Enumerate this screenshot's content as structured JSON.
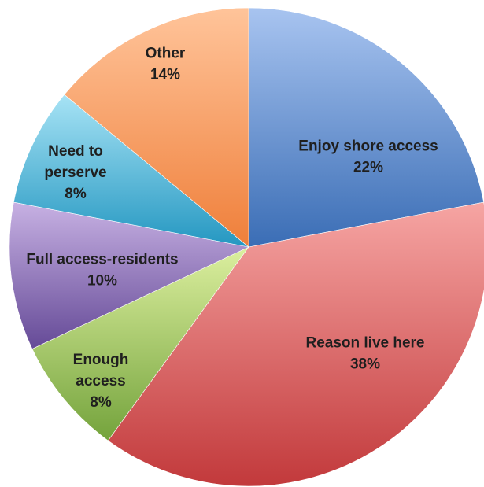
{
  "chart_data": {
    "type": "pie",
    "title": "",
    "slices": [
      {
        "label_lines": [
          "Enjoy shore access"
        ],
        "value": 22,
        "value_label": "22%",
        "color_light": "#a8c4f0",
        "color_dark": "#3a6db5"
      },
      {
        "label_lines": [
          "Reason live here"
        ],
        "value": 38,
        "value_label": "38%",
        "color_light": "#f6a5a3",
        "color_dark": "#c2393b"
      },
      {
        "label_lines": [
          "Enough",
          "access"
        ],
        "value": 8,
        "value_label": "8%",
        "color_light": "#dcef9f",
        "color_dark": "#74a33c"
      },
      {
        "label_lines": [
          "Full access-residents"
        ],
        "value": 10,
        "value_label": "10%",
        "color_light": "#c7b1e3",
        "color_dark": "#654a97"
      },
      {
        "label_lines": [
          "Need to",
          "perserve"
        ],
        "value": 8,
        "value_label": "8%",
        "color_light": "#a7e3f5",
        "color_dark": "#2497c1"
      },
      {
        "label_lines": [
          "Other"
        ],
        "value": 14,
        "value_label": "14%",
        "color_light": "#ffc49a",
        "color_dark": "#ef7f3a"
      }
    ],
    "start_angle_deg": 0,
    "direction": "clockwise",
    "legend": "none"
  }
}
